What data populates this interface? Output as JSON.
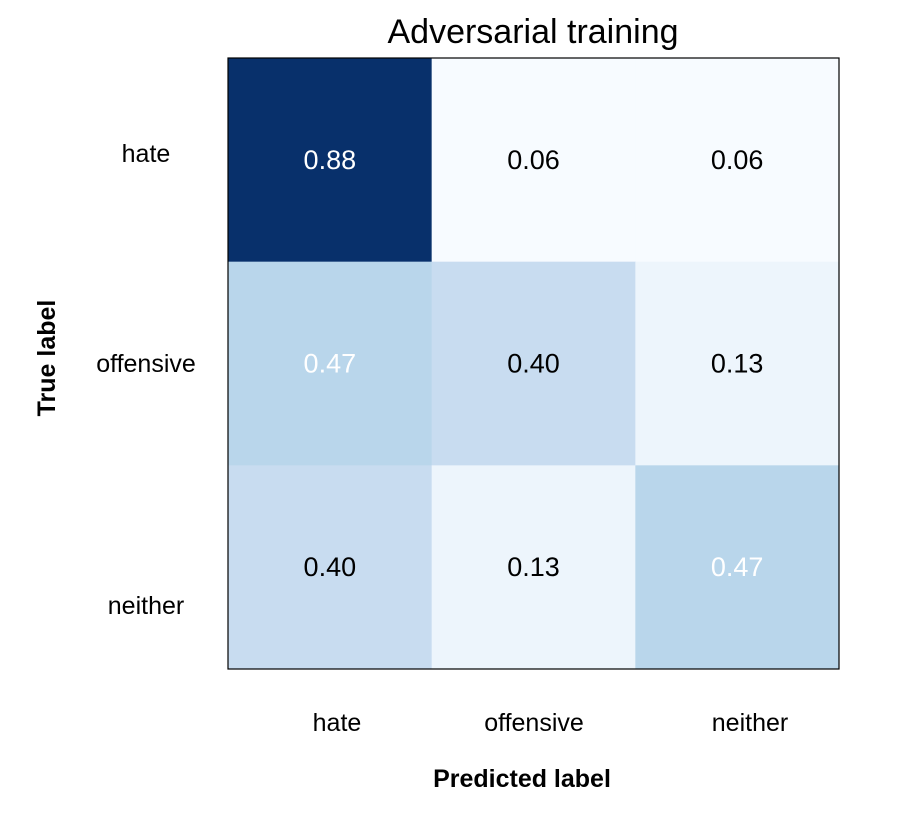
{
  "chart_data": {
    "type": "heatmap",
    "title": "Adversarial training",
    "xlabel": "Predicted label",
    "ylabel": "True label",
    "x_categories": [
      "hate",
      "offensive",
      "neither"
    ],
    "y_categories": [
      "hate",
      "offensive",
      "neither"
    ],
    "values": [
      [
        0.88,
        0.06,
        0.06
      ],
      [
        0.47,
        0.4,
        0.13
      ],
      [
        0.4,
        0.13,
        0.47
      ]
    ],
    "value_labels": [
      [
        "0.88",
        "0.06",
        "0.06"
      ],
      [
        "0.47",
        "0.40",
        "0.13"
      ],
      [
        "0.40",
        "0.13",
        "0.47"
      ]
    ],
    "colormap": "Blues",
    "color_min": "#f7fbff",
    "color_max": "#08306b",
    "vmin": 0.06,
    "vmax": 0.88,
    "grid": false,
    "colorbar": false
  }
}
